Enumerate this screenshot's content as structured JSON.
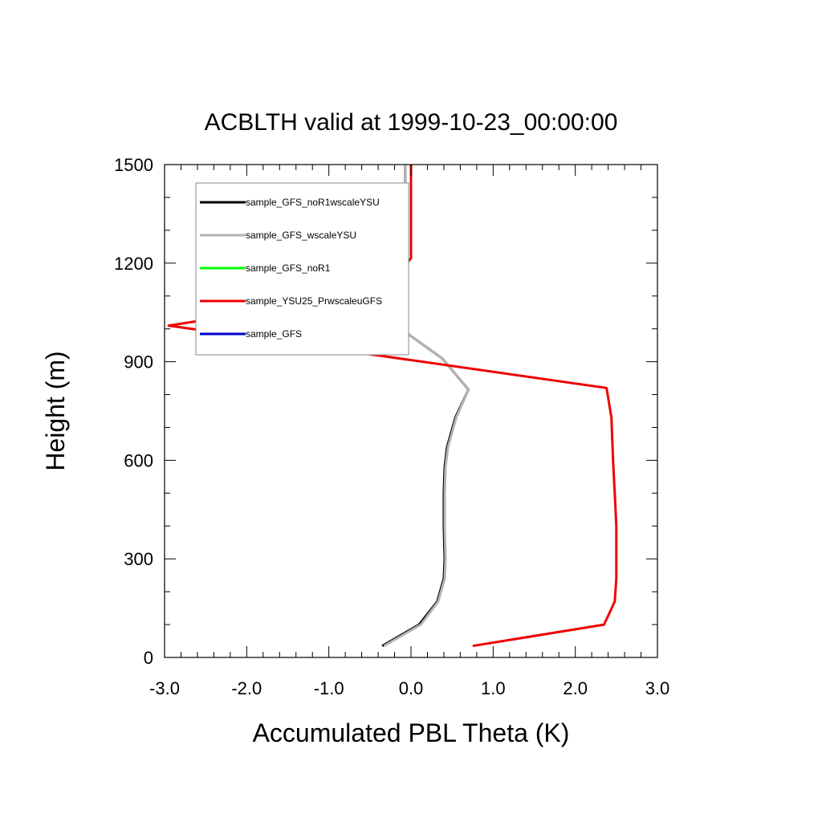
{
  "chart_data": {
    "type": "line",
    "title": "ACBLTH valid at 1999-10-23_00:00:00",
    "xlabel": "Accumulated PBL Theta (K)",
    "ylabel": "Height (m)",
    "xlim": [
      -3.0,
      3.0
    ],
    "ylim": [
      0,
      1500
    ],
    "xticks": [
      -3.0,
      -2.0,
      -1.0,
      0.0,
      1.0,
      2.0,
      3.0
    ],
    "xtick_labels": [
      "-3.0",
      "-2.0",
      "-1.0",
      "0.0",
      "1.0",
      "2.0",
      "3.0"
    ],
    "yticks": [
      0,
      300,
      600,
      900,
      1200,
      1500
    ],
    "ytick_labels": [
      "0",
      "300",
      "600",
      "900",
      "1200",
      "1500"
    ],
    "grid": false,
    "legend_position": "top-left",
    "series": [
      {
        "name": "sample_GFS_noR1wscaleYSU",
        "color": "#000000",
        "points": [
          [
            -0.35,
            35
          ],
          [
            0.1,
            100
          ],
          [
            0.32,
            170
          ],
          [
            0.4,
            240
          ],
          [
            0.41,
            300
          ],
          [
            0.4,
            400
          ],
          [
            0.4,
            500
          ],
          [
            0.41,
            580
          ],
          [
            0.44,
            640
          ],
          [
            0.54,
            730
          ],
          [
            0.7,
            815
          ],
          [
            0.38,
            910
          ],
          [
            -0.18,
            1010
          ],
          [
            -0.2,
            1100
          ],
          [
            -0.12,
            1210
          ],
          [
            -0.08,
            1300
          ],
          [
            -0.07,
            1400
          ],
          [
            -0.07,
            1500
          ]
        ]
      },
      {
        "name": "sample_GFS_wscaleYSU",
        "color": "#b3b3b3",
        "points": [
          [
            -0.33,
            35
          ],
          [
            0.12,
            100
          ],
          [
            0.33,
            170
          ],
          [
            0.41,
            240
          ],
          [
            0.42,
            300
          ],
          [
            0.41,
            400
          ],
          [
            0.41,
            500
          ],
          [
            0.42,
            580
          ],
          [
            0.45,
            640
          ],
          [
            0.55,
            730
          ],
          [
            0.7,
            815
          ],
          [
            0.38,
            910
          ],
          [
            -0.18,
            1010
          ],
          [
            -0.2,
            1100
          ],
          [
            -0.12,
            1210
          ],
          [
            -0.08,
            1300
          ],
          [
            -0.07,
            1400
          ],
          [
            -0.07,
            1500
          ]
        ]
      },
      {
        "name": "sample_GFS_noR1",
        "color": "#00ff00",
        "points": []
      },
      {
        "name": "sample_YSU25_PrwscaleuGFS",
        "color": "#ee0000",
        "points": [
          [
            0.75,
            35
          ],
          [
            2.35,
            100
          ],
          [
            2.48,
            170
          ],
          [
            2.5,
            240
          ],
          [
            2.5,
            300
          ],
          [
            2.5,
            400
          ],
          [
            2.48,
            500
          ],
          [
            2.46,
            600
          ],
          [
            2.44,
            730
          ],
          [
            2.38,
            820
          ],
          [
            -2.95,
            1010
          ],
          [
            -0.38,
            1110
          ],
          [
            0.0,
            1215
          ],
          [
            0.0,
            1300
          ],
          [
            0.0,
            1400
          ],
          [
            0.0,
            1500
          ]
        ]
      },
      {
        "name": "sample_GFS",
        "color": "#0000cc",
        "points": []
      }
    ]
  }
}
